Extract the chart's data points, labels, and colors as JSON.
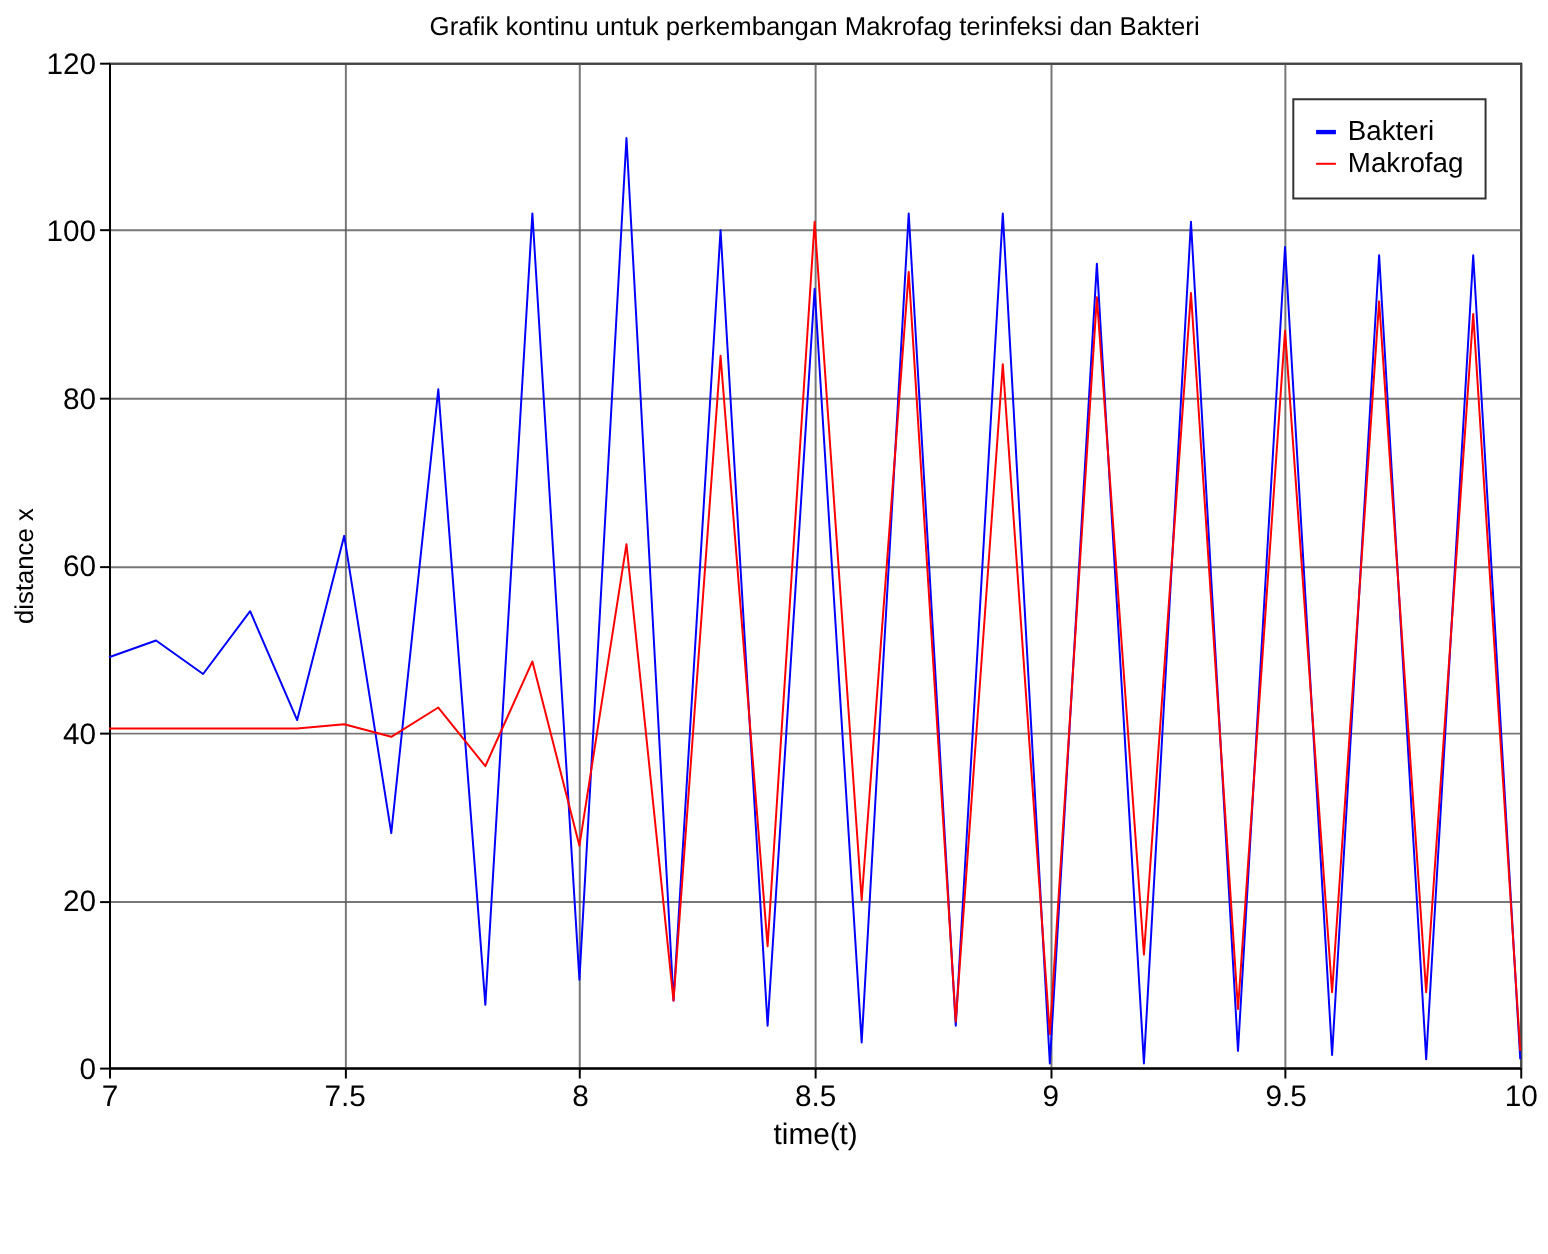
{
  "chart_data": {
    "type": "line",
    "title": "Grafik kontinu untuk perkembangan Makrofag terinfeksi dan Bakteri",
    "xlabel": "time(t)",
    "ylabel": "distance x",
    "x": [
      7,
      7.1,
      7.2,
      7.3,
      7.4,
      7.5,
      7.6,
      7.7,
      7.8,
      7.9,
      8,
      8.1,
      8.2,
      8.3,
      8.4,
      8.5,
      8.6,
      8.7,
      8.8,
      8.9,
      9,
      9.1,
      9.2,
      9.3,
      9.4,
      9.5,
      9.6,
      9.7,
      9.8,
      9.9,
      10
    ],
    "series": [
      {
        "name": "Bakteri",
        "color": "#0000ff",
        "values": [
          49,
          51,
          47,
          54.5,
          41.5,
          63.5,
          28,
          81,
          7.5,
          102,
          10.5,
          111,
          8,
          100,
          5,
          93,
          3,
          102,
          5,
          102,
          0.5,
          96,
          0.5,
          101,
          2,
          98,
          1.5,
          97,
          1,
          97,
          1
        ]
      },
      {
        "name": "Makrofag",
        "color": "#ff0000",
        "values": [
          40.5,
          40.5,
          40.5,
          40.5,
          40.5,
          41,
          39.5,
          43,
          36,
          48.5,
          26.5,
          62.5,
          8,
          85,
          14.5,
          101,
          20,
          95,
          5.5,
          84,
          4,
          92,
          13.5,
          92.5,
          7,
          88,
          9,
          91.5,
          9,
          90,
          2
        ]
      }
    ],
    "xlim": [
      7,
      10
    ],
    "xticks": [
      7,
      7.5,
      8,
      8.5,
      9,
      9.5,
      10
    ],
    "ylim": [
      0,
      120
    ],
    "yticks": [
      0,
      20,
      40,
      60,
      80,
      100,
      120
    ],
    "grid": true,
    "legend": "top right",
    "marker": "none",
    "line_style": "solid"
  }
}
